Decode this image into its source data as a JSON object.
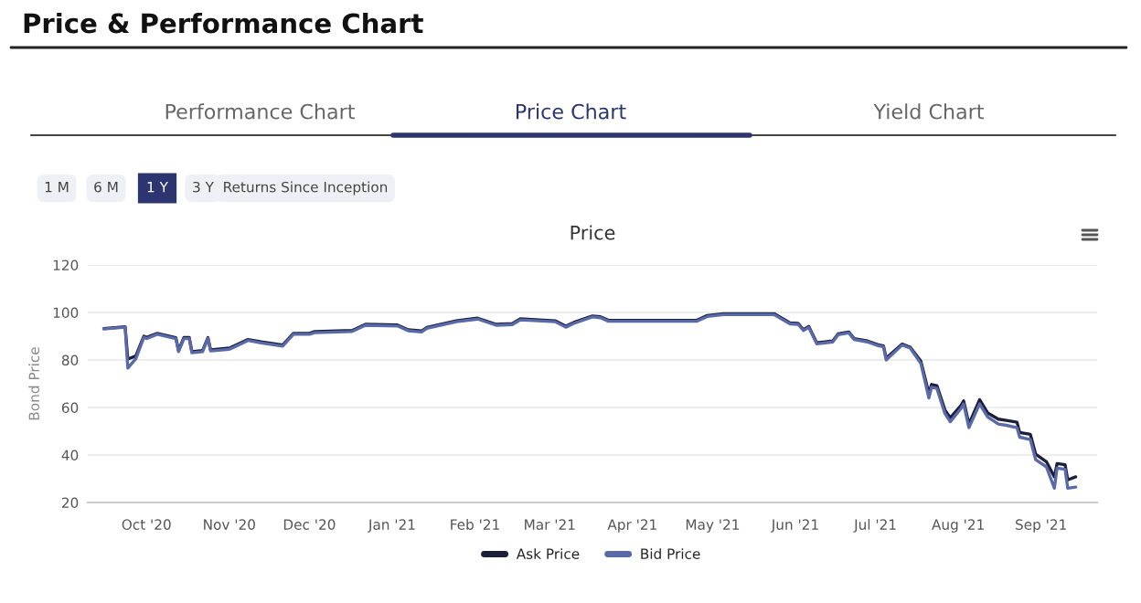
{
  "chart_data": {
    "type": "line",
    "title": "Price",
    "ylabel": "Bond Price",
    "annotations": [
      "Price & Performance Chart",
      "Performance Chart",
      "Price Chart",
      "Yield Chart",
      "1 M",
      "6 M",
      "1 Y",
      "3 Y",
      "Returns Since Inception"
    ],
    "x": [
      "2020-09-15",
      "2020-09-23",
      "2020-09-24",
      "2020-09-27",
      "2020-09-30",
      "2020-10-01",
      "2020-10-05",
      "2020-10-12",
      "2020-10-13",
      "2020-10-15",
      "2020-10-17",
      "2020-10-18",
      "2020-10-22",
      "2020-10-24",
      "2020-10-25",
      "2020-11-01",
      "2020-11-08",
      "2020-11-13",
      "2020-11-21",
      "2020-11-25",
      "2020-12-01",
      "2020-12-03",
      "2020-12-17",
      "2020-12-22",
      "2021-01-03",
      "2021-01-07",
      "2021-01-12",
      "2021-01-14",
      "2021-01-25",
      "2021-02-02",
      "2021-02-09",
      "2021-02-15",
      "2021-02-18",
      "2021-03-03",
      "2021-03-07",
      "2021-03-10",
      "2021-03-17",
      "2021-03-20",
      "2021-03-23",
      "2021-04-25",
      "2021-04-29",
      "2021-05-05",
      "2021-05-24",
      "2021-05-30",
      "2021-06-02",
      "2021-06-04",
      "2021-06-06",
      "2021-06-09",
      "2021-06-15",
      "2021-06-17",
      "2021-06-21",
      "2021-06-23",
      "2021-06-28",
      "2021-07-02",
      "2021-07-04",
      "2021-07-05",
      "2021-07-11",
      "2021-07-14",
      "2021-07-18",
      "2021-07-21",
      "2021-07-22",
      "2021-07-24",
      "2021-07-27",
      "2021-07-29",
      "2021-08-02",
      "2021-08-03",
      "2021-08-05",
      "2021-08-09",
      "2021-08-12",
      "2021-08-16",
      "2021-08-19",
      "2021-08-23",
      "2021-08-24",
      "2021-08-28",
      "2021-08-30",
      "2021-09-03",
      "2021-09-06",
      "2021-09-07",
      "2021-09-10",
      "2021-09-11",
      "2021-09-14"
    ],
    "series": [
      {
        "name": "Ask Price",
        "color": "#1c1f3b",
        "values": [
          93.2,
          94,
          80.4,
          81.7,
          90,
          89.5,
          91.2,
          89.4,
          84,
          89.5,
          89.5,
          83.5,
          84,
          89.4,
          84.3,
          85,
          88.6,
          87.6,
          86.3,
          91.2,
          91.2,
          92,
          92.4,
          95,
          94.7,
          92.7,
          92.2,
          93.7,
          96.5,
          97.6,
          95,
          95.3,
          97.3,
          96.5,
          94.2,
          95.8,
          98.5,
          98.2,
          96.7,
          96.7,
          98.7,
          99.5,
          99.5,
          95.6,
          95.4,
          92.8,
          94.1,
          87.2,
          88,
          91,
          91.8,
          89,
          88,
          86.4,
          85.9,
          80.8,
          86.7,
          85.4,
          79.5,
          65.9,
          69.7,
          69.2,
          59,
          55.6,
          60.8,
          62.8,
          53,
          63.3,
          57.7,
          55.1,
          54.6,
          53.8,
          49.5,
          48.7,
          40.3,
          37.2,
          30.8,
          36.4,
          35.9,
          29.5,
          30.8
        ]
      },
      {
        "name": "Bid Price",
        "color": "#5a6aa8",
        "values": [
          93,
          93.8,
          76.6,
          80.5,
          89.5,
          89,
          90.8,
          89,
          83.5,
          89,
          89,
          83,
          83.5,
          89,
          83.8,
          84.5,
          88.2,
          87.2,
          85.8,
          90.8,
          90.8,
          91.5,
          92,
          94.6,
          94.3,
          92.3,
          91.8,
          93.3,
          96.1,
          97.2,
          94.6,
          94.9,
          96.9,
          96.1,
          93.8,
          95.4,
          98.1,
          97.8,
          96.3,
          96.3,
          98.3,
          99.1,
          99.1,
          95.2,
          95,
          92.4,
          93.7,
          86.8,
          87.6,
          90.6,
          91.4,
          88.6,
          87.6,
          86,
          85.5,
          80,
          86.3,
          85,
          78.5,
          64,
          68.5,
          68,
          57.5,
          54,
          59.5,
          61.5,
          51.5,
          61.5,
          56,
          53,
          52.5,
          51.5,
          47.5,
          46.5,
          38,
          35,
          26,
          34.5,
          34,
          26,
          26.5
        ]
      }
    ],
    "xlim": [
      "2020-09-09",
      "2021-09-22"
    ],
    "xticks": [
      {
        "value": "2020-10-01",
        "label": "Oct '20"
      },
      {
        "value": "2020-11-01",
        "label": "Nov '20"
      },
      {
        "value": "2020-12-01",
        "label": "Dec '20"
      },
      {
        "value": "2021-01-01",
        "label": "Jan '21"
      },
      {
        "value": "2021-02-01",
        "label": "Feb '21"
      },
      {
        "value": "2021-03-01",
        "label": "Mar '21"
      },
      {
        "value": "2021-04-01",
        "label": "Apr '21"
      },
      {
        "value": "2021-05-01",
        "label": "May '21"
      },
      {
        "value": "2021-06-01",
        "label": "Jun '21"
      },
      {
        "value": "2021-07-01",
        "label": "Jul '21"
      },
      {
        "value": "2021-08-01",
        "label": "Aug '21"
      },
      {
        "value": "2021-09-01",
        "label": "Sep '21"
      }
    ],
    "ylim": [
      20,
      120
    ],
    "yticks": [
      20,
      40,
      60,
      80,
      100,
      120
    ],
    "grid": "y",
    "legend": "bottom",
    "marker": "none",
    "line_style": "solid"
  }
}
